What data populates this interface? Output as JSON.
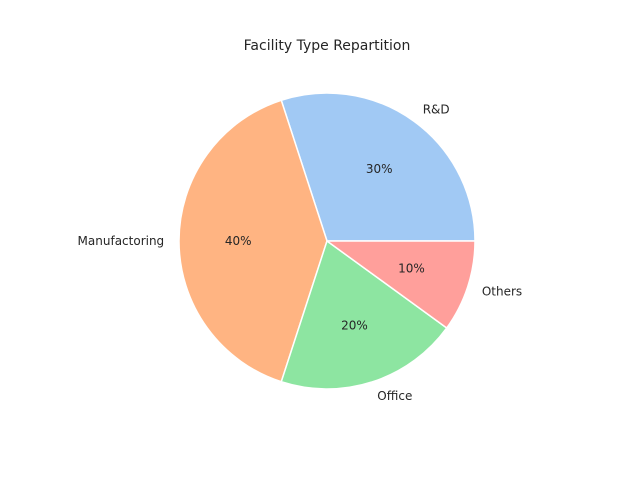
{
  "chart_data": {
    "type": "pie",
    "title": "Facility Type Repartition",
    "labels": [
      "R&D",
      "Manufactoring",
      "Office",
      "Others"
    ],
    "values": [
      30,
      40,
      20,
      10
    ],
    "percent_labels": [
      "30%",
      "40%",
      "20%",
      "10%"
    ],
    "colors": [
      "#a1c9f4",
      "#ffb482",
      "#8de5a1",
      "#ff9f9b"
    ],
    "start_angle_deg": 0,
    "direction": "counterclockwise",
    "legend": "none"
  }
}
